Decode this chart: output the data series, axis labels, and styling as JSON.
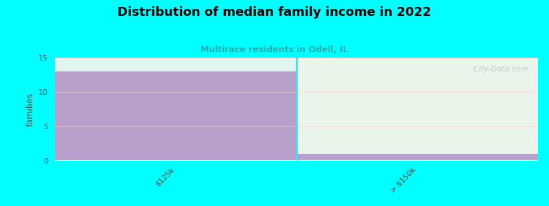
{
  "title": "Distribution of median family income in 2022",
  "subtitle": "Multirace residents in Odell, IL",
  "categories": [
    "$125k",
    "> $150k"
  ],
  "values": [
    13,
    1
  ],
  "bar_color": "#b8a0cc",
  "bg_color": "#00ffff",
  "plot_bg_color_left": "#e8e0f0",
  "plot_bg_color_right": "#e8f5e8",
  "plot_top_strip_left": "#e0f5ee",
  "plot_top_strip_right": "#f0fbf5",
  "ylabel": "families",
  "ylim": [
    0,
    15
  ],
  "yticks": [
    0,
    5,
    10,
    15
  ],
  "watermark": "  City-Data.com",
  "subtitle_color": "#20b0b0"
}
